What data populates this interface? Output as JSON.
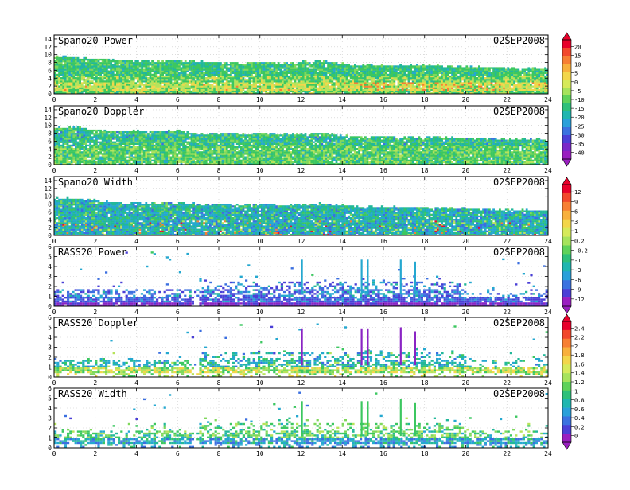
{
  "figure": {
    "x_ticks": [
      "0",
      "2",
      "4",
      "6",
      "8",
      "10",
      "12",
      "14",
      "16",
      "18",
      "20",
      "22",
      "24"
    ],
    "x_range": [
      0,
      24
    ]
  },
  "chart_data": [
    {
      "type": "heatmap",
      "title": "Spano20 Power",
      "date": "02SEP2008",
      "y_ticks": [
        "0",
        "2",
        "4",
        "6",
        "8",
        "10",
        "12",
        "14"
      ],
      "ylim": [
        0,
        15
      ],
      "colorbar": "power",
      "field": "spano_power",
      "top_profile": [
        [
          0,
          9.8
        ],
        [
          1,
          9.6
        ],
        [
          2,
          9.2
        ],
        [
          3,
          8.8
        ],
        [
          4,
          8.6
        ],
        [
          5,
          8.5
        ],
        [
          6,
          8.7
        ],
        [
          7,
          8.4
        ],
        [
          8,
          8.3
        ],
        [
          9,
          8.0
        ],
        [
          10,
          8.4
        ],
        [
          11,
          8.1
        ],
        [
          12,
          8.3
        ],
        [
          13,
          8.6
        ],
        [
          14,
          8.0
        ],
        [
          15,
          7.6
        ],
        [
          16,
          7.6
        ],
        [
          17,
          7.5
        ],
        [
          18,
          7.5
        ],
        [
          19,
          7.4
        ],
        [
          20,
          7.2
        ],
        [
          21,
          7.0
        ],
        [
          22,
          6.9
        ],
        [
          23,
          6.8
        ],
        [
          24,
          6.7
        ]
      ]
    },
    {
      "type": "heatmap",
      "title": "Spano20 Doppler",
      "date": "02SEP2008",
      "y_ticks": [
        "0",
        "2",
        "4",
        "6",
        "8",
        "10",
        "12",
        "14"
      ],
      "ylim": [
        0,
        15
      ],
      "colorbar": null,
      "field": "spano_doppler",
      "top_profile": [
        [
          0,
          9.6
        ],
        [
          1,
          9.8
        ],
        [
          2,
          9.2
        ],
        [
          3,
          8.6
        ],
        [
          4,
          8.8
        ],
        [
          5,
          8.7
        ],
        [
          6,
          8.9
        ],
        [
          7,
          8.0
        ],
        [
          8,
          8.2
        ],
        [
          9,
          8.1
        ],
        [
          10,
          8.2
        ],
        [
          11,
          8.0
        ],
        [
          12,
          8.0
        ],
        [
          13,
          8.4
        ],
        [
          14,
          7.6
        ],
        [
          15,
          7.4
        ],
        [
          16,
          7.4
        ],
        [
          17,
          7.3
        ],
        [
          18,
          7.3
        ],
        [
          19,
          7.1
        ],
        [
          20,
          7.0
        ],
        [
          21,
          6.9
        ],
        [
          22,
          6.8
        ],
        [
          23,
          6.7
        ],
        [
          24,
          6.6
        ]
      ]
    },
    {
      "type": "heatmap",
      "title": "Spano20 Width",
      "date": "02SEP2008",
      "y_ticks": [
        "0",
        "2",
        "4",
        "6",
        "8",
        "10",
        "12",
        "14"
      ],
      "ylim": [
        0,
        15
      ],
      "colorbar": "width",
      "field": "spano_width",
      "top_profile": [
        [
          0,
          9.8
        ],
        [
          1,
          9.7
        ],
        [
          2,
          9.2
        ],
        [
          3,
          8.8
        ],
        [
          4,
          8.6
        ],
        [
          5,
          8.5
        ],
        [
          6,
          8.7
        ],
        [
          7,
          8.2
        ],
        [
          8,
          8.3
        ],
        [
          9,
          8.0
        ],
        [
          10,
          8.4
        ],
        [
          11,
          8.1
        ],
        [
          12,
          8.2
        ],
        [
          13,
          8.5
        ],
        [
          14,
          7.9
        ],
        [
          15,
          7.6
        ],
        [
          16,
          7.5
        ],
        [
          17,
          7.4
        ],
        [
          18,
          7.4
        ],
        [
          19,
          7.2
        ],
        [
          20,
          7.1
        ],
        [
          21,
          7.0
        ],
        [
          22,
          6.8
        ],
        [
          23,
          6.7
        ],
        [
          24,
          6.6
        ]
      ]
    },
    {
      "type": "heatmap",
      "title": "RASS20 Power",
      "date": "02SEP2008",
      "y_ticks": [
        "0",
        "1",
        "2",
        "3",
        "4",
        "5",
        "6"
      ],
      "ylim": [
        0,
        6
      ],
      "colorbar": null,
      "field": "rass_power",
      "spikes": [
        [
          12.0,
          4.7
        ],
        [
          14.9,
          4.7
        ],
        [
          15.2,
          4.7
        ],
        [
          16.8,
          4.7
        ],
        [
          17.5,
          4.5
        ]
      ]
    },
    {
      "type": "heatmap",
      "title": "RASS20 Doppler",
      "date": "02SEP2008",
      "y_ticks": [
        "0",
        "1",
        "2",
        "3",
        "4",
        "5",
        "6"
      ],
      "ylim": [
        0,
        6
      ],
      "colorbar": "doppler",
      "field": "rass_doppler",
      "spikes": [
        [
          12.0,
          4.9
        ],
        [
          14.9,
          4.9
        ],
        [
          15.2,
          4.9
        ],
        [
          16.8,
          5.0
        ],
        [
          17.5,
          4.6
        ]
      ]
    },
    {
      "type": "heatmap",
      "title": "RASS20 Width",
      "date": "02SEP2008",
      "y_ticks": [
        "0",
        "1",
        "2",
        "3",
        "4",
        "5",
        "6"
      ],
      "ylim": [
        0,
        6
      ],
      "colorbar": null,
      "field": "rass_width",
      "spikes": [
        [
          12.0,
          4.7
        ],
        [
          14.9,
          4.7
        ],
        [
          15.2,
          4.7
        ],
        [
          16.8,
          4.9
        ],
        [
          17.5,
          4.5
        ]
      ]
    }
  ],
  "colorbars": {
    "power": {
      "labels": [
        "20",
        "15",
        "10",
        "5",
        "0",
        "-5",
        "-10",
        "-15",
        "-20",
        "-25",
        "-30",
        "-35",
        "-40"
      ],
      "colors": [
        "#e8002a",
        "#f2482c",
        "#f77f33",
        "#f8b03c",
        "#f3d64a",
        "#d6ea5a",
        "#a6e35c",
        "#5fd25a",
        "#2ec07a",
        "#20b6b0",
        "#2aa0da",
        "#3b72e0",
        "#4b3fd6",
        "#7a28c8",
        "#9a1fc0"
      ]
    },
    "width": {
      "labels": [
        "12",
        "9",
        "6",
        "3",
        "1",
        "0.2",
        "-0.2",
        "-1",
        "-3",
        "-6",
        "-9",
        "-12"
      ],
      "colors": [
        "#e8002a",
        "#f2482c",
        "#f77f33",
        "#f8b03c",
        "#f3d64a",
        "#d6ea5a",
        "#a6e35c",
        "#5fd25a",
        "#2ec07a",
        "#20b6b0",
        "#2aa0da",
        "#3b72e0",
        "#4b3fd6",
        "#9a1fc0"
      ]
    },
    "doppler": {
      "labels": [
        "2.4",
        "2.2",
        "2",
        "1.8",
        "1.6",
        "1.4",
        "1.2",
        "1",
        "0.8",
        "0.6",
        "0.4",
        "0.2",
        "0"
      ],
      "colors": [
        "#e8002a",
        "#f2482c",
        "#f77f33",
        "#f8b03c",
        "#f3d64a",
        "#d6ea5a",
        "#a6e35c",
        "#5fd25a",
        "#2ec07a",
        "#20b6b0",
        "#2aa0da",
        "#3b72e0",
        "#4b3fd6",
        "#9a1fc0"
      ]
    }
  }
}
